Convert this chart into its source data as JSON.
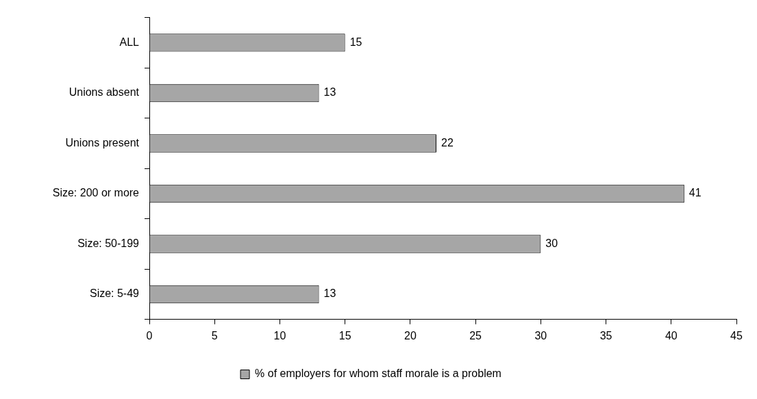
{
  "chart_data": {
    "type": "bar",
    "orientation": "horizontal",
    "categories": [
      "ALL",
      "Unions absent",
      "Unions present",
      "Size: 200 or more",
      "Size: 50-199",
      "Size: 5-49"
    ],
    "series": [
      {
        "name": "% of employers for whom staff morale is a problem",
        "color": "#a6a6a6",
        "values": [
          15,
          13,
          22,
          41,
          30,
          13
        ]
      }
    ],
    "xlim": [
      0,
      45
    ],
    "xticks": [
      0,
      5,
      10,
      15,
      20,
      25,
      30,
      35,
      40,
      45
    ],
    "data_labels": true,
    "grid": false,
    "legend": "bottom"
  }
}
